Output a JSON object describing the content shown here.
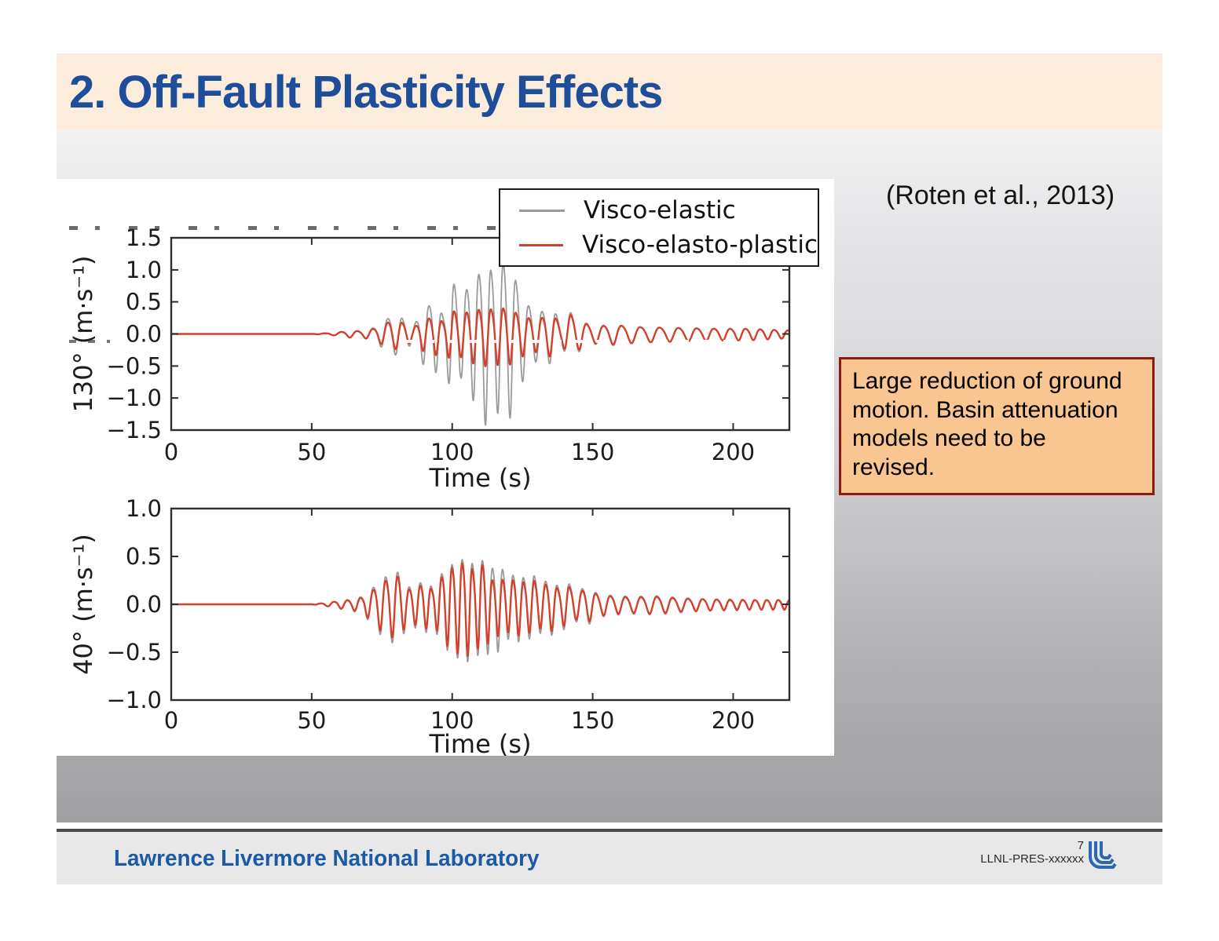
{
  "slide": {
    "title": "2. Off-Fault Plasticity Effects",
    "citation": "(Roten et al., 2013)",
    "callout_text": "Large reduction of ground\nmotion. Basin attenuation\nmodels need to be\nrevised.",
    "footer": {
      "organization": "Lawrence Livermore National Laboratory",
      "page_number": "7",
      "document_id": "LLNL-PRES-xxxxxx"
    },
    "colors": {
      "title_text": "#1e4e99",
      "title_band_bg": "#fcecdb",
      "callout_bg": "#f9c590",
      "callout_border": "#8a1c10",
      "footer_text_blue": "#1a5aa6",
      "logo_blue": "#2b67b2",
      "axis_ink": "#2e2e2e",
      "gray_series": "#9a9a9a",
      "red_series": "#d3402c"
    }
  },
  "legend": {
    "items": [
      {
        "label": "Visco-elastic",
        "color": "#9a9a9a"
      },
      {
        "label": "Visco-elasto-plastic",
        "color": "#d3402c"
      }
    ]
  },
  "chart_data": [
    {
      "type": "line",
      "title": "",
      "xlabel": "Time (s)",
      "ylabel": "130° (m·s⁻¹)",
      "xlim": [
        0,
        220
      ],
      "ylim": [
        -1.5,
        1.5
      ],
      "xticks": [
        0,
        50,
        100,
        150,
        200
      ],
      "yticks": [
        1.5,
        1.0,
        0.5,
        0.0,
        -0.5,
        -1.0,
        -1.5
      ],
      "grid": false,
      "legend_position": "upper right, outside top",
      "dominant_freq_hz": 0.19,
      "series": [
        {
          "name": "Visco-elastic",
          "color": "#9a9a9a",
          "peak_amplitude": 1.45,
          "peak_time_s": 112,
          "envelope_t_amp": [
            [
              0,
              0
            ],
            [
              50,
              0
            ],
            [
              58,
              0.02
            ],
            [
              63,
              0.05
            ],
            [
              68,
              0.05
            ],
            [
              73,
              0.12
            ],
            [
              78,
              0.3
            ],
            [
              82,
              0.28
            ],
            [
              86,
              0.12
            ],
            [
              90,
              0.45
            ],
            [
              94,
              0.55
            ],
            [
              97,
              0.3
            ],
            [
              100,
              0.95
            ],
            [
              103,
              0.6
            ],
            [
              106,
              0.85
            ],
            [
              109,
              1.0
            ],
            [
              112,
              1.28
            ],
            [
              115,
              1.0
            ],
            [
              118,
              1.25
            ],
            [
              121,
              1.15
            ],
            [
              124,
              0.75
            ],
            [
              127,
              0.5
            ],
            [
              130,
              0.38
            ],
            [
              133,
              0.4
            ],
            [
              136,
              0.42
            ],
            [
              139,
              0.18
            ],
            [
              142,
              0.38
            ],
            [
              145,
              0.25
            ],
            [
              150,
              0.14
            ],
            [
              158,
              0.16
            ],
            [
              166,
              0.12
            ],
            [
              175,
              0.11
            ],
            [
              185,
              0.1
            ],
            [
              195,
              0.09
            ],
            [
              205,
              0.09
            ],
            [
              215,
              0.07
            ],
            [
              220,
              0.06
            ]
          ]
        },
        {
          "name": "Visco-elasto-plastic",
          "color": "#d3402c",
          "peak_amplitude": 0.5,
          "peak_time_s": 112,
          "envelope_t_amp": [
            [
              0,
              0
            ],
            [
              50,
              0
            ],
            [
              58,
              0.02
            ],
            [
              63,
              0.05
            ],
            [
              68,
              0.05
            ],
            [
              73,
              0.1
            ],
            [
              78,
              0.22
            ],
            [
              82,
              0.2
            ],
            [
              86,
              0.1
            ],
            [
              90,
              0.25
            ],
            [
              94,
              0.3
            ],
            [
              97,
              0.2
            ],
            [
              100,
              0.42
            ],
            [
              103,
              0.32
            ],
            [
              106,
              0.4
            ],
            [
              109,
              0.42
            ],
            [
              112,
              0.45
            ],
            [
              115,
              0.42
            ],
            [
              118,
              0.45
            ],
            [
              121,
              0.42
            ],
            [
              124,
              0.33
            ],
            [
              127,
              0.28
            ],
            [
              130,
              0.25
            ],
            [
              133,
              0.3
            ],
            [
              136,
              0.32
            ],
            [
              139,
              0.15
            ],
            [
              142,
              0.34
            ],
            [
              145,
              0.22
            ],
            [
              150,
              0.13
            ],
            [
              158,
              0.15
            ],
            [
              166,
              0.12
            ],
            [
              175,
              0.11
            ],
            [
              185,
              0.1
            ],
            [
              195,
              0.09
            ],
            [
              205,
              0.09
            ],
            [
              215,
              0.07
            ],
            [
              220,
              0.06
            ]
          ]
        }
      ]
    },
    {
      "type": "line",
      "title": "",
      "xlabel": "Time (s)",
      "ylabel": "40° (m·s⁻¹)",
      "xlim": [
        0,
        220
      ],
      "ylim": [
        -1.0,
        1.0
      ],
      "xticks": [
        0,
        50,
        100,
        150,
        200
      ],
      "yticks": [
        1.0,
        0.5,
        0.0,
        -0.5,
        -1.0
      ],
      "grid": false,
      "dominant_freq_hz": 0.23,
      "series": [
        {
          "name": "Visco-elastic",
          "color": "#9a9a9a",
          "peak_amplitude": 0.62,
          "peak_time_s": 105,
          "envelope_t_amp": [
            [
              0,
              0
            ],
            [
              50,
              0
            ],
            [
              56,
              0.02
            ],
            [
              60,
              0.04
            ],
            [
              64,
              0.06
            ],
            [
              68,
              0.09
            ],
            [
              72,
              0.2
            ],
            [
              75,
              0.3
            ],
            [
              78,
              0.35
            ],
            [
              81,
              0.38
            ],
            [
              84,
              0.2
            ],
            [
              87,
              0.22
            ],
            [
              90,
              0.28
            ],
            [
              93,
              0.2
            ],
            [
              96,
              0.35
            ],
            [
              99,
              0.45
            ],
            [
              102,
              0.5
            ],
            [
              105,
              0.55
            ],
            [
              108,
              0.45
            ],
            [
              111,
              0.52
            ],
            [
              114,
              0.42
            ],
            [
              117,
              0.45
            ],
            [
              120,
              0.32
            ],
            [
              123,
              0.36
            ],
            [
              126,
              0.3
            ],
            [
              129,
              0.34
            ],
            [
              132,
              0.25
            ],
            [
              135,
              0.3
            ],
            [
              138,
              0.2
            ],
            [
              141,
              0.26
            ],
            [
              144,
              0.16
            ],
            [
              148,
              0.2
            ],
            [
              152,
              0.12
            ],
            [
              158,
              0.1
            ],
            [
              165,
              0.09
            ],
            [
              172,
              0.1
            ],
            [
              180,
              0.08
            ],
            [
              190,
              0.06
            ],
            [
              200,
              0.06
            ],
            [
              210,
              0.05
            ],
            [
              220,
              0.05
            ]
          ]
        },
        {
          "name": "Visco-elasto-plastic",
          "color": "#d3402c",
          "peak_amplitude": 0.55,
          "peak_time_s": 105,
          "envelope_t_amp": [
            [
              0,
              0
            ],
            [
              50,
              0
            ],
            [
              56,
              0.02
            ],
            [
              60,
              0.04
            ],
            [
              64,
              0.05
            ],
            [
              68,
              0.08
            ],
            [
              72,
              0.17
            ],
            [
              75,
              0.26
            ],
            [
              78,
              0.3
            ],
            [
              81,
              0.33
            ],
            [
              84,
              0.17
            ],
            [
              87,
              0.19
            ],
            [
              90,
              0.24
            ],
            [
              93,
              0.17
            ],
            [
              96,
              0.31
            ],
            [
              99,
              0.41
            ],
            [
              102,
              0.46
            ],
            [
              105,
              0.5
            ],
            [
              108,
              0.38
            ],
            [
              111,
              0.47
            ],
            [
              114,
              0.28
            ],
            [
              117,
              0.3
            ],
            [
              120,
              0.26
            ],
            [
              123,
              0.3
            ],
            [
              126,
              0.25
            ],
            [
              129,
              0.28
            ],
            [
              132,
              0.21
            ],
            [
              135,
              0.26
            ],
            [
              138,
              0.17
            ],
            [
              141,
              0.22
            ],
            [
              144,
              0.14
            ],
            [
              148,
              0.17
            ],
            [
              152,
              0.11
            ],
            [
              158,
              0.09
            ],
            [
              165,
              0.08
            ],
            [
              172,
              0.09
            ],
            [
              180,
              0.07
            ],
            [
              190,
              0.06
            ],
            [
              200,
              0.05
            ],
            [
              210,
              0.05
            ],
            [
              220,
              0.05
            ]
          ]
        }
      ]
    }
  ]
}
